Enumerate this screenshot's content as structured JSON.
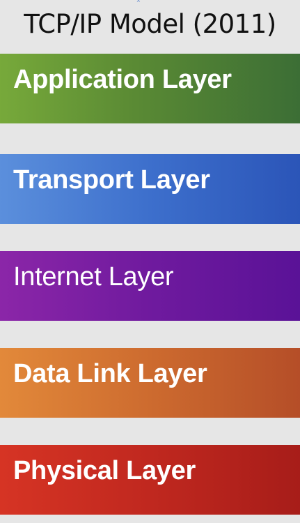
{
  "title": "TCP/IP Model (2011)",
  "layers": [
    {
      "label": "Application Layer",
      "color": "#5a8a34"
    },
    {
      "label": "Transport Layer",
      "color": "#3d6fcc"
    },
    {
      "label": "Internet Layer",
      "color": "#6f1a9e"
    },
    {
      "label": "Data Link Layer",
      "color": "#cd6b2f"
    },
    {
      "label": "Physical Layer",
      "color": "#c0281f"
    }
  ]
}
